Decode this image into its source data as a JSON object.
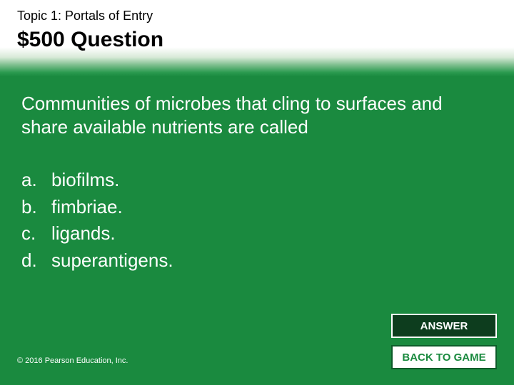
{
  "colors": {
    "slide_bg": "#1a8a3f",
    "header_gradient": [
      "#ffffff",
      "#d8ead8",
      "#7fbf8f",
      "#2a9a4f",
      "#1a8a3f"
    ],
    "text_light": "#ffffff",
    "text_dark": "#000000",
    "answer_btn_bg": "#0d3d1e",
    "answer_btn_border": "#ffffff",
    "back_btn_bg": "#ffffff",
    "back_btn_border": "#0d5c2a",
    "back_btn_text": "#1a8a3f"
  },
  "typography": {
    "topic_fontsize": 18,
    "money_fontsize": 30,
    "question_fontsize": 26,
    "option_fontsize": 26,
    "button_fontsize": 15,
    "copyright_fontsize": 11,
    "font_family": "Arial"
  },
  "header": {
    "topic": "Topic 1: Portals of Entry",
    "money": "$500 Question"
  },
  "question": "Communities of microbes that cling to surfaces and share available nutrients are called",
  "options": [
    {
      "letter": "a.",
      "text": "biofilms."
    },
    {
      "letter": "b.",
      "text": "fimbriae."
    },
    {
      "letter": "c.",
      "text": "ligands."
    },
    {
      "letter": "d.",
      "text": "superantigens."
    }
  ],
  "buttons": {
    "answer": "ANSWER",
    "back": "BACK TO GAME"
  },
  "copyright": "© 2016 Pearson Education, Inc."
}
